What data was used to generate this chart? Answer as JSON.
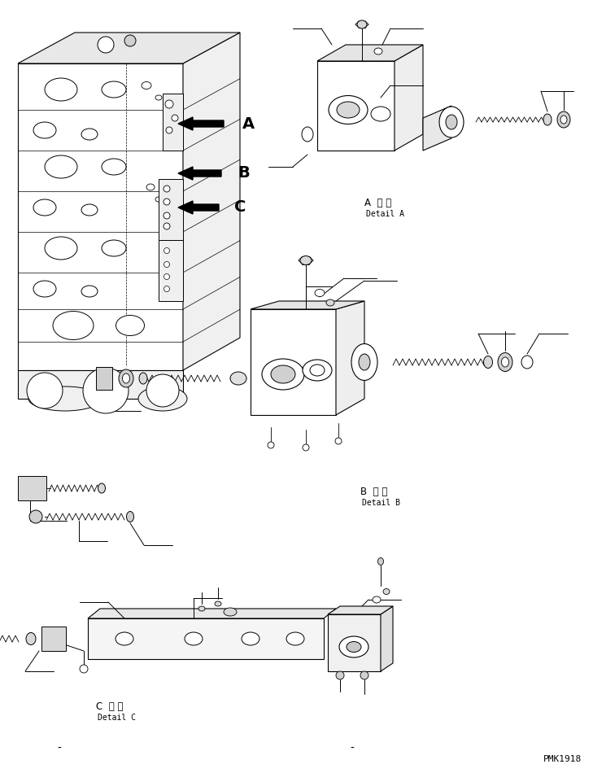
{
  "bg_color": "#ffffff",
  "line_color": "#000000",
  "fig_width": 7.29,
  "fig_height": 9.5,
  "dpi": 100,
  "watermark": "PMK1918",
  "labels": {
    "A_detail_jp": "A 詳細",
    "A_detail_en": "Detail A",
    "B_detail_jp": "B 詳細",
    "B_detail_en": "Detail B",
    "C_detail_jp": "C 詳細",
    "C_detail_en": "Detail C"
  }
}
